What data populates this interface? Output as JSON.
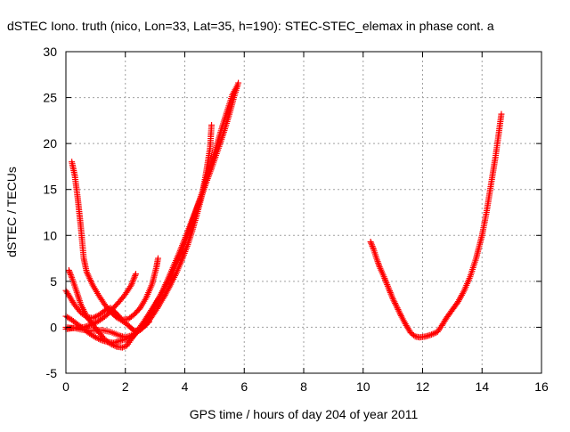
{
  "chart_data": {
    "type": "scatter",
    "title": "dSTEC Iono. truth (nico, Lon=33, Lat=35, h=190): STEC-STEC_elemax in phase cont. a",
    "xlabel": "GPS time / hours of day 204 of year 2011",
    "ylabel": "dSTEC  / TECUs",
    "xlim": [
      0,
      16
    ],
    "ylim": [
      -5,
      30
    ],
    "x_ticks": [
      "0",
      "2",
      "4",
      "6",
      "8",
      "10",
      "12",
      "14",
      "16"
    ],
    "y_ticks": [
      "-5",
      "0",
      "5",
      "10",
      "15",
      "20",
      "25",
      "30"
    ],
    "grid": true,
    "legend": "none",
    "marker": "plus",
    "color": "#ff0000",
    "series": [
      {
        "points": [
          [
            0.1,
            6.2
          ],
          [
            0.2,
            5.4
          ],
          [
            0.35,
            4.0
          ],
          [
            0.5,
            2.5
          ],
          [
            0.7,
            1.2
          ],
          [
            0.9,
            0.3
          ],
          [
            1.1,
            -0.5
          ],
          [
            1.3,
            -1.3
          ],
          [
            1.5,
            -1.8
          ],
          [
            1.7,
            -2.1
          ],
          [
            1.9,
            -2.2
          ],
          [
            2.05,
            -2.0
          ],
          [
            2.2,
            -1.3
          ],
          [
            2.4,
            -0.4
          ],
          [
            2.6,
            0.5
          ],
          [
            2.8,
            1.5
          ],
          [
            3.0,
            2.5
          ],
          [
            3.2,
            3.6
          ],
          [
            3.4,
            4.8
          ],
          [
            3.6,
            6.0
          ],
          [
            3.8,
            7.6
          ],
          [
            4.0,
            9.2
          ],
          [
            4.2,
            11.0
          ],
          [
            4.4,
            12.9
          ],
          [
            4.6,
            14.6
          ],
          [
            4.75,
            16.0
          ],
          [
            4.9,
            17.3
          ],
          [
            5.05,
            18.7
          ],
          [
            5.2,
            20.1
          ],
          [
            5.35,
            21.6
          ],
          [
            5.5,
            23.2
          ],
          [
            5.65,
            25.0
          ],
          [
            5.8,
            26.6
          ]
        ]
      },
      {
        "points": [
          [
            0.2,
            18.0
          ],
          [
            0.3,
            16.5
          ],
          [
            0.4,
            14.0
          ],
          [
            0.5,
            11.0
          ],
          [
            0.6,
            7.5
          ],
          [
            0.7,
            6.0
          ],
          [
            0.9,
            4.6
          ],
          [
            1.1,
            3.5
          ],
          [
            1.3,
            2.5
          ],
          [
            1.5,
            1.7
          ],
          [
            1.7,
            1.1
          ],
          [
            1.9,
            0.7
          ],
          [
            2.1,
            0.2
          ],
          [
            2.3,
            -0.4
          ],
          [
            2.5,
            -0.3
          ],
          [
            2.7,
            0.3
          ],
          [
            2.9,
            1.2
          ],
          [
            3.1,
            2.2
          ],
          [
            3.3,
            3.3
          ],
          [
            3.5,
            4.5
          ],
          [
            3.7,
            5.8
          ],
          [
            3.9,
            7.3
          ],
          [
            4.1,
            9.0
          ],
          [
            4.25,
            10.5
          ],
          [
            4.4,
            12.2
          ],
          [
            4.55,
            14.0
          ],
          [
            4.7,
            16.5
          ],
          [
            4.85,
            19.5
          ],
          [
            4.9,
            22.0
          ]
        ]
      },
      {
        "points": [
          [
            0.0,
            4.0
          ],
          [
            0.15,
            3.2
          ],
          [
            0.3,
            2.4
          ],
          [
            0.5,
            1.6
          ],
          [
            0.7,
            1.1
          ],
          [
            0.9,
            1.0
          ],
          [
            1.1,
            1.3
          ],
          [
            1.3,
            1.8
          ],
          [
            1.5,
            2.1
          ],
          [
            1.7,
            1.5
          ],
          [
            1.9,
            0.8
          ],
          [
            2.1,
            0.9
          ],
          [
            2.3,
            1.4
          ],
          [
            2.5,
            2.1
          ],
          [
            2.7,
            3.2
          ],
          [
            2.9,
            4.7
          ],
          [
            3.05,
            6.6
          ],
          [
            3.1,
            7.5
          ]
        ]
      },
      {
        "points": [
          [
            0.0,
            1.2
          ],
          [
            0.2,
            0.8
          ],
          [
            0.4,
            0.3
          ],
          [
            0.6,
            -0.2
          ],
          [
            0.8,
            -0.7
          ],
          [
            1.0,
            -1.1
          ],
          [
            1.2,
            -1.4
          ],
          [
            1.4,
            -1.6
          ],
          [
            1.6,
            -1.7
          ],
          [
            1.8,
            -1.5
          ],
          [
            2.0,
            -1.3
          ],
          [
            2.2,
            -1.2
          ],
          [
            2.4,
            -0.5
          ],
          [
            2.6,
            0.3
          ],
          [
            2.8,
            1.3
          ],
          [
            3.0,
            2.4
          ],
          [
            3.2,
            3.6
          ],
          [
            3.4,
            5.0
          ],
          [
            3.6,
            6.5
          ],
          [
            3.8,
            8.0
          ],
          [
            4.0,
            9.6
          ],
          [
            4.2,
            11.3
          ],
          [
            4.4,
            13.0
          ],
          [
            4.6,
            14.8
          ],
          [
            4.8,
            17.0
          ],
          [
            5.0,
            19.0
          ],
          [
            5.2,
            21.2
          ],
          [
            5.4,
            23.3
          ],
          [
            5.6,
            25.3
          ],
          [
            5.75,
            26.2
          ]
        ]
      },
      {
        "points": [
          [
            0.0,
            -0.2
          ],
          [
            0.2,
            -0.1
          ],
          [
            0.4,
            0.0
          ],
          [
            0.6,
            0.0
          ],
          [
            0.8,
            0.2
          ],
          [
            1.0,
            0.5
          ],
          [
            1.2,
            0.9
          ],
          [
            1.4,
            1.4
          ],
          [
            1.6,
            2.1
          ],
          [
            1.8,
            2.8
          ],
          [
            2.0,
            3.6
          ],
          [
            2.2,
            4.6
          ],
          [
            2.35,
            5.8
          ]
        ]
      },
      {
        "points": [
          [
            0.0,
            0.0
          ],
          [
            0.3,
            -0.1
          ],
          [
            0.6,
            -0.3
          ],
          [
            0.9,
            -0.4
          ],
          [
            1.2,
            -0.3
          ],
          [
            1.5,
            -0.5
          ],
          [
            1.8,
            -0.9
          ],
          [
            2.0,
            -1.1
          ],
          [
            2.2,
            -0.9
          ],
          [
            2.5,
            -0.3
          ],
          [
            2.8,
            0.6
          ]
        ]
      },
      {
        "points": [
          [
            10.25,
            9.3
          ],
          [
            10.35,
            8.5
          ],
          [
            10.45,
            7.5
          ],
          [
            10.55,
            6.6
          ],
          [
            10.7,
            5.5
          ],
          [
            10.85,
            4.3
          ],
          [
            11.0,
            3.1
          ],
          [
            11.15,
            2.1
          ],
          [
            11.3,
            1.1
          ],
          [
            11.45,
            0.2
          ],
          [
            11.6,
            -0.6
          ],
          [
            11.75,
            -1.0
          ],
          [
            11.9,
            -1.1
          ],
          [
            12.1,
            -1.0
          ],
          [
            12.3,
            -0.8
          ],
          [
            12.5,
            -0.5
          ],
          [
            12.65,
            0.2
          ],
          [
            12.8,
            1.0
          ],
          [
            13.0,
            1.9
          ],
          [
            13.2,
            2.8
          ],
          [
            13.4,
            4.0
          ],
          [
            13.6,
            5.5
          ],
          [
            13.8,
            7.5
          ],
          [
            14.0,
            10.0
          ],
          [
            14.15,
            12.5
          ],
          [
            14.3,
            15.5
          ],
          [
            14.45,
            18.5
          ],
          [
            14.55,
            20.8
          ],
          [
            14.65,
            23.2
          ]
        ]
      }
    ]
  }
}
